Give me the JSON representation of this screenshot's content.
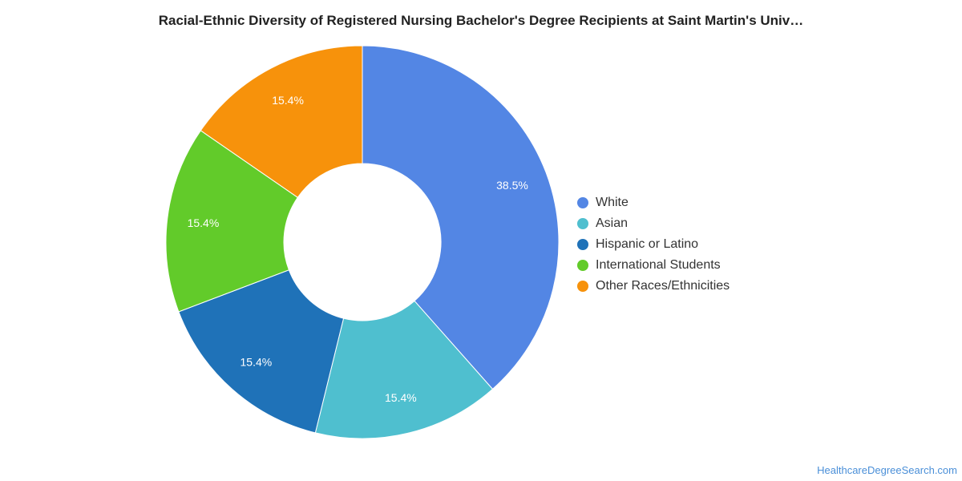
{
  "chart_data": {
    "type": "pie",
    "donut": true,
    "title": "Racial-Ethnic Diversity of Registered Nursing Bachelor's Degree Recipients at Saint Martin's Univ…",
    "categories": [
      "White",
      "Asian",
      "Hispanic or Latino",
      "International Students",
      "Other Races/Ethnicities"
    ],
    "values": [
      38.5,
      15.4,
      15.4,
      15.4,
      15.4
    ],
    "labels": [
      "38.5%",
      "15.4%",
      "15.4%",
      "15.4%",
      "15.4%"
    ],
    "colors": [
      "#5386e4",
      "#4fbfcf",
      "#1f72b8",
      "#62cb2a",
      "#f7920b"
    ],
    "legend_position": "right"
  },
  "source": "HealthcareDegreeSearch.com"
}
